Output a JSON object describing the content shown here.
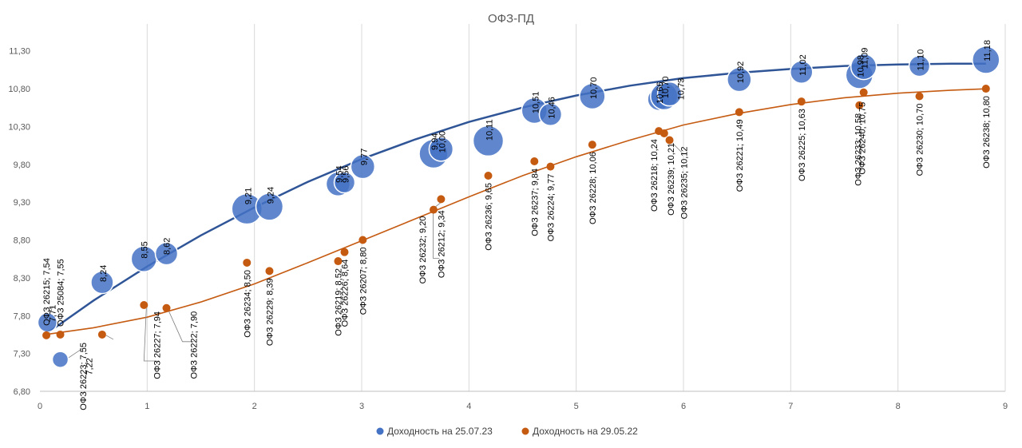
{
  "chart_data": {
    "type": "scatter",
    "title": "ОФЗ-ПД",
    "xlim": [
      0,
      9
    ],
    "ylim": [
      6.8,
      11.55
    ],
    "x_ticks": [
      "0",
      "1",
      "2",
      "3",
      "4",
      "5",
      "6",
      "7",
      "8",
      "9"
    ],
    "y_ticks": [
      "6,80",
      "7,30",
      "7,80",
      "8,30",
      "8,80",
      "9,30",
      "9,80",
      "10,30",
      "10,80",
      "11,30"
    ],
    "grid": "vertical",
    "legend_position": "bottom",
    "series": [
      {
        "name": "Доходность на  25.07.23",
        "color": "#4472C4",
        "trend_color": "#2F5597",
        "trend": [
          [
            0.05,
            7.55
          ],
          [
            0.5,
            8.0
          ],
          [
            1,
            8.45
          ],
          [
            1.5,
            8.86
          ],
          [
            2,
            9.23
          ],
          [
            2.5,
            9.57
          ],
          [
            3,
            9.87
          ],
          [
            3.5,
            10.13
          ],
          [
            4,
            10.36
          ],
          [
            4.5,
            10.55
          ],
          [
            5,
            10.71
          ],
          [
            5.5,
            10.84
          ],
          [
            6,
            10.94
          ],
          [
            6.5,
            11.01
          ],
          [
            7,
            11.06
          ],
          [
            7.5,
            11.1
          ],
          [
            8,
            11.12
          ],
          [
            8.5,
            11.13
          ],
          [
            8.82,
            11.13
          ]
        ],
        "points": [
          {
            "x": 0.07,
            "y": 7.71,
            "size": 12,
            "label": "7,71"
          },
          {
            "x": 0.19,
            "y": 7.22,
            "size": 10,
            "label": "7,22"
          },
          {
            "x": 0.58,
            "y": 8.24,
            "size": 14,
            "label": "8,24"
          },
          {
            "x": 0.97,
            "y": 8.55,
            "size": 16,
            "label": "8,55"
          },
          {
            "x": 1.18,
            "y": 8.62,
            "size": 14,
            "label": "8,62"
          },
          {
            "x": 1.93,
            "y": 9.21,
            "size": 19,
            "label": "9,21"
          },
          {
            "x": 2.14,
            "y": 9.24,
            "size": 17,
            "label": "9,24"
          },
          {
            "x": 2.78,
            "y": 9.54,
            "size": 15,
            "label": "9,54"
          },
          {
            "x": 2.84,
            "y": 9.56,
            "size": 13,
            "label": "9,56"
          },
          {
            "x": 3.01,
            "y": 9.77,
            "size": 15,
            "label": "9,77"
          },
          {
            "x": 3.67,
            "y": 9.94,
            "size": 18,
            "label": "9,94"
          },
          {
            "x": 3.74,
            "y": 10.0,
            "size": 15,
            "label": "10,00"
          },
          {
            "x": 4.18,
            "y": 10.11,
            "size": 19,
            "label": "10,11"
          },
          {
            "x": 4.61,
            "y": 10.51,
            "size": 16,
            "label": "10,51"
          },
          {
            "x": 4.76,
            "y": 10.46,
            "size": 14,
            "label": "10,46"
          },
          {
            "x": 5.15,
            "y": 10.7,
            "size": 16,
            "label": "10,70"
          },
          {
            "x": 5.77,
            "y": 10.66,
            "size": 14,
            "label": "10,66"
          },
          {
            "x": 5.82,
            "y": 10.7,
            "size": 17,
            "label": "10,70"
          },
          {
            "x": 5.87,
            "y": 10.73,
            "size": 15,
            "label": "10,73"
          },
          {
            "x": 6.52,
            "y": 10.92,
            "size": 15,
            "label": "10,92"
          },
          {
            "x": 7.1,
            "y": 11.02,
            "size": 14,
            "label": "11,02"
          },
          {
            "x": 7.64,
            "y": 10.98,
            "size": 17,
            "label": "10,98"
          },
          {
            "x": 7.68,
            "y": 11.09,
            "size": 16,
            "label": "11,09"
          },
          {
            "x": 8.2,
            "y": 11.1,
            "size": 13,
            "label": "11,10"
          },
          {
            "x": 8.82,
            "y": 11.18,
            "size": 17,
            "label": "11,18"
          }
        ]
      },
      {
        "name": "Доходность на  29.05.22",
        "color": "#C55A11",
        "trend_color": "#C55A11",
        "trend": [
          [
            0.05,
            7.55
          ],
          [
            0.5,
            7.64
          ],
          [
            1,
            7.78
          ],
          [
            1.5,
            7.98
          ],
          [
            2,
            8.22
          ],
          [
            2.5,
            8.5
          ],
          [
            3,
            8.79
          ],
          [
            3.5,
            9.08
          ],
          [
            4,
            9.37
          ],
          [
            4.5,
            9.65
          ],
          [
            5,
            9.9
          ],
          [
            5.5,
            10.12
          ],
          [
            6,
            10.32
          ],
          [
            6.5,
            10.47
          ],
          [
            7,
            10.59
          ],
          [
            7.5,
            10.68
          ],
          [
            8,
            10.74
          ],
          [
            8.5,
            10.78
          ],
          [
            8.85,
            10.8
          ]
        ],
        "points": [
          {
            "x": 0.06,
            "y": 7.54,
            "label": "ОФЗ 26215; 7,54"
          },
          {
            "x": 0.19,
            "y": 7.55,
            "label": "ОФЗ 25084; 7,55"
          },
          {
            "x": 0.58,
            "y": 7.55,
            "label": "ОФЗ 26223; 7,55"
          },
          {
            "x": 0.97,
            "y": 7.94,
            "label": "ОФЗ 26227; 7,94"
          },
          {
            "x": 1.18,
            "y": 7.9,
            "label": "ОФЗ 26222; 7,90"
          },
          {
            "x": 1.93,
            "y": 8.5,
            "label": "ОФЗ 26234; 8,50"
          },
          {
            "x": 2.14,
            "y": 8.39,
            "label": "ОФЗ 26229; 8,39"
          },
          {
            "x": 2.78,
            "y": 8.52,
            "label": "ОФЗ 26219; 8,52"
          },
          {
            "x": 2.84,
            "y": 8.64,
            "label": "ОФЗ 26226; 8,64"
          },
          {
            "x": 3.01,
            "y": 8.8,
            "label": "ОФЗ 26207; 8,80"
          },
          {
            "x": 3.67,
            "y": 9.2,
            "label": "ОФЗ 26232; 9,20"
          },
          {
            "x": 3.74,
            "y": 9.34,
            "label": "ОФЗ 26212; 9,34"
          },
          {
            "x": 4.18,
            "y": 9.65,
            "label": "ОФЗ 26236; 9,65"
          },
          {
            "x": 4.61,
            "y": 9.84,
            "label": "ОФЗ 26237; 9,84"
          },
          {
            "x": 4.76,
            "y": 9.77,
            "label": "ОФЗ 26224; 9,77"
          },
          {
            "x": 5.15,
            "y": 10.06,
            "label": "ОФЗ 26228; 10,06"
          },
          {
            "x": 5.77,
            "y": 10.24,
            "label": "ОФЗ 26218; 10,24"
          },
          {
            "x": 5.82,
            "y": 10.21,
            "label": "ОФЗ 26239; 10,21"
          },
          {
            "x": 5.87,
            "y": 10.12,
            "label": "ОФЗ 26235; 10,12"
          },
          {
            "x": 6.52,
            "y": 10.49,
            "label": "ОФЗ 26221; 10,49"
          },
          {
            "x": 7.1,
            "y": 10.63,
            "label": "ОФЗ 26225; 10,63"
          },
          {
            "x": 7.64,
            "y": 10.58,
            "label": "ОФЗ 26233; 10,58"
          },
          {
            "x": 7.68,
            "y": 10.75,
            "label": "ОФЗ 26240; 10,75"
          },
          {
            "x": 8.2,
            "y": 10.7,
            "label": "ОФЗ 26230; 10,70"
          },
          {
            "x": 8.82,
            "y": 10.8,
            "label": "ОФЗ 26238; 10,80"
          }
        ]
      }
    ]
  }
}
